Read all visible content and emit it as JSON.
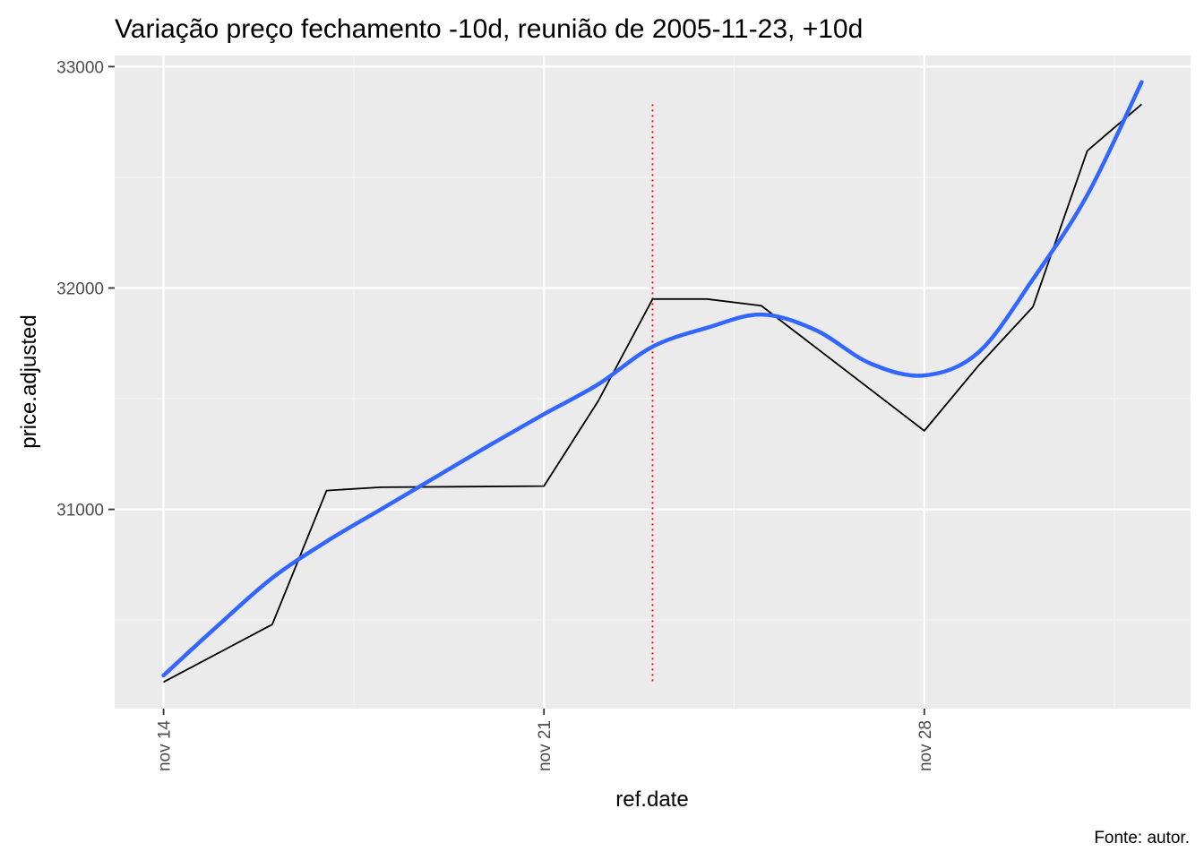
{
  "chart_data": {
    "type": "line",
    "title": "Variação preço fechamento -10d, reunião de 2005-11-23, +10d",
    "xlabel": "ref.date",
    "ylabel": "price.adjusted",
    "caption": "Fonte: autor.",
    "xlim": [
      "2005-11-14",
      "2005-12-02"
    ],
    "ylim": [
      30100,
      33050
    ],
    "x_ticks": [
      {
        "date": "2005-11-14",
        "label": "nov 14"
      },
      {
        "date": "2005-11-21",
        "label": "nov 21"
      },
      {
        "date": "2005-11-28",
        "label": "nov 28"
      }
    ],
    "y_ticks": [
      {
        "value": 31000,
        "label": "31000"
      },
      {
        "value": 32000,
        "label": "32000"
      },
      {
        "value": 33000,
        "label": "33000"
      }
    ],
    "grid": true,
    "series": [
      {
        "color": "#000000",
        "points": [
          {
            "x": "2005-11-14",
            "y": 30220
          },
          {
            "x": "2005-11-16",
            "y": 30480
          },
          {
            "x": "2005-11-17",
            "y": 31085
          },
          {
            "x": "2005-11-18",
            "y": 31100
          },
          {
            "x": "2005-11-21",
            "y": 31105
          },
          {
            "x": "2005-11-22",
            "y": 31490
          },
          {
            "x": "2005-11-23",
            "y": 31950
          },
          {
            "x": "2005-11-24",
            "y": 31950
          },
          {
            "x": "2005-11-25",
            "y": 31920
          },
          {
            "x": "2005-11-28",
            "y": 31355
          },
          {
            "x": "2005-11-29",
            "y": 31650
          },
          {
            "x": "2005-11-30",
            "y": 31915
          },
          {
            "x": "2005-12-01",
            "y": 32620
          },
          {
            "x": "2005-12-02",
            "y": 32830
          }
        ]
      },
      {
        "color": "#3366FF",
        "smoothed": true,
        "points": [
          {
            "x": "2005-11-14",
            "y": 30250
          },
          {
            "x": "2005-11-15",
            "y": 30475
          },
          {
            "x": "2005-11-16",
            "y": 30690
          },
          {
            "x": "2005-11-17",
            "y": 30855
          },
          {
            "x": "2005-11-18",
            "y": 31000
          },
          {
            "x": "2005-11-19",
            "y": 31145
          },
          {
            "x": "2005-11-20",
            "y": 31290
          },
          {
            "x": "2005-11-21",
            "y": 31430
          },
          {
            "x": "2005-11-22",
            "y": 31565
          },
          {
            "x": "2005-11-23",
            "y": 31735
          },
          {
            "x": "2005-11-24",
            "y": 31820
          },
          {
            "x": "2005-11-25",
            "y": 31880
          },
          {
            "x": "2005-11-26",
            "y": 31810
          },
          {
            "x": "2005-11-27",
            "y": 31660
          },
          {
            "x": "2005-11-28",
            "y": 31605
          },
          {
            "x": "2005-11-29",
            "y": 31710
          },
          {
            "x": "2005-11-30",
            "y": 32040
          },
          {
            "x": "2005-12-01",
            "y": 32420
          },
          {
            "x": "2005-12-02",
            "y": 32930
          }
        ]
      }
    ],
    "annotations": [
      {
        "type": "vline",
        "x": "2005-11-23",
        "y_from": 30220,
        "y_to": 32830,
        "color": "#FF0000",
        "style": "dotted"
      }
    ],
    "colors": {
      "panel_bg": "#EBEBEB",
      "grid_major": "#FFFFFF",
      "grid_minor": "#F5F5F5",
      "tick": "#333333"
    }
  }
}
